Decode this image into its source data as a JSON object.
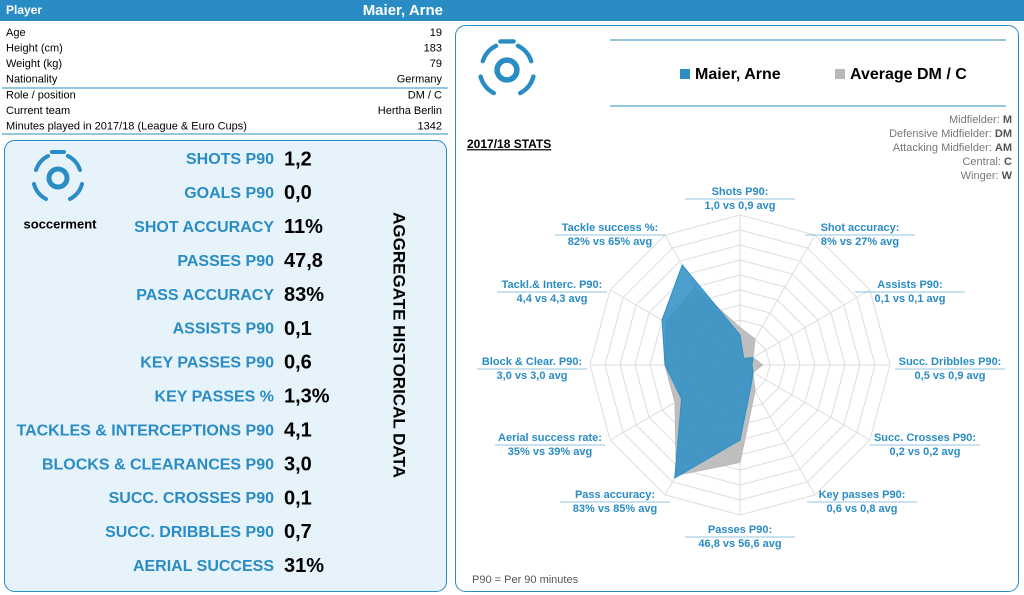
{
  "header": {
    "label": "Player",
    "name": "Maier, Arne"
  },
  "info": {
    "rows": [
      [
        "Age",
        "19"
      ],
      [
        "Height (cm)",
        "183"
      ],
      [
        "Weight (kg)",
        "79"
      ],
      [
        "Nationality",
        "Germany"
      ],
      [
        "Role / position",
        "DM / C"
      ],
      [
        "Current team",
        "Hertha Berlin"
      ],
      [
        "Minutes played in 2017/18 (League & Euro Cups)",
        "1342"
      ]
    ]
  },
  "aggregate": {
    "title": "AGGREGATE HISTORICAL DATA",
    "brand": "soccerment",
    "rows": [
      [
        "SHOTS P90",
        "1,2"
      ],
      [
        "GOALS P90",
        "0,0"
      ],
      [
        "SHOT ACCURACY",
        "11%"
      ],
      [
        "PASSES P90",
        "47,8"
      ],
      [
        "PASS ACCURACY",
        "83%"
      ],
      [
        "ASSISTS P90",
        "0,1"
      ],
      [
        "KEY PASSES P90",
        "0,6"
      ],
      [
        "KEY PASSES %",
        "1,3%"
      ],
      [
        "TACKLES & INTERCEPTIONS P90",
        "4,1"
      ],
      [
        "BLOCKS & CLEARANCES P90",
        "3,0"
      ],
      [
        "SUCC. CROSSES P90",
        "0,1"
      ],
      [
        "SUCC. DRIBBLES P90",
        "0,7"
      ],
      [
        "AERIAL SUCCESS",
        "31%"
      ]
    ]
  },
  "roles": [
    [
      "Midfielder:",
      "M"
    ],
    [
      "Defensive Midfielder:",
      "DM"
    ],
    [
      "Attacking Midfielder:",
      "AM"
    ],
    [
      "Central:",
      "C"
    ],
    [
      "Winger:",
      "W"
    ]
  ],
  "chart_data": {
    "type": "radar",
    "title": "2017/18 STATS",
    "note": "P90 = Per 90 minutes",
    "categories": [
      "Shots P90:",
      "Shot accuracy:",
      "Assists P90:",
      "Succ. Dribbles P90:",
      "Succ. Crosses P90:",
      "Key passes P90:",
      "Passes P90:",
      "Pass accuracy:",
      "Aerial success rate:",
      "Block & Clear. P90:",
      "Tackl.& Interc. P90:",
      "Tackle success %:"
    ],
    "category_values": [
      "1,0 vs 0,9 avg",
      "8% vs 27% avg",
      "0,1 vs 0,1 avg",
      "0,5 vs 0,9 avg",
      "0,2 vs 0,2 avg",
      "0,6 vs 0,8 avg",
      "46,8 vs 56,6 avg",
      "83% vs 85% avg",
      "35% vs 39% avg",
      "3,0 vs 3,0 avg",
      "4,4 vs 4,3 avg",
      "82% vs 65% avg"
    ],
    "rlim": [
      0,
      10
    ],
    "rticks": [
      1,
      2,
      3,
      4,
      5,
      6,
      7,
      8,
      9,
      10
    ],
    "grid": true,
    "series": [
      {
        "name": "Average DM / C",
        "color": "#b8b8b8",
        "values": [
          2.5,
          2,
          1,
          1.5,
          1,
          2,
          6.5,
          8.5,
          5,
          5,
          5.7,
          6
        ]
      },
      {
        "name": "Maier, Arne",
        "color": "#2e8fc4",
        "values": [
          2,
          0.5,
          1,
          0.8,
          1,
          1.5,
          5,
          8.7,
          4.5,
          5,
          6,
          7.7
        ]
      }
    ]
  }
}
